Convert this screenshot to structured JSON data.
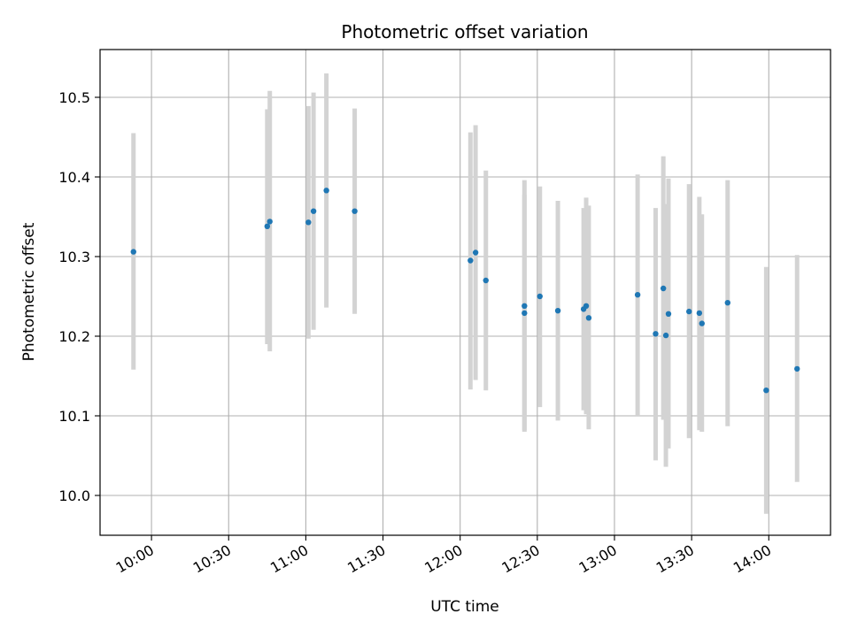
{
  "chart_data": {
    "type": "scatter",
    "title": "Photometric offset variation",
    "xlabel": "UTC time",
    "ylabel": "Photometric offset",
    "x_ticks": [
      "10:00",
      "10:30",
      "11:00",
      "11:30",
      "12:00",
      "12:30",
      "13:00",
      "13:30",
      "14:00"
    ],
    "y_ticks": [
      10.0,
      10.1,
      10.2,
      10.3,
      10.4,
      10.5
    ],
    "xlim": [
      "09:40",
      "14:24"
    ],
    "ylim": [
      9.95,
      10.56
    ],
    "grid": true,
    "colors": {
      "point": "#1f77b4",
      "errorbar": "#d3d3d3",
      "grid": "#b0b0b0"
    },
    "points": [
      {
        "x": "09:53",
        "y": 10.306,
        "err_low": 10.158,
        "err_high": 10.455
      },
      {
        "x": "10:45",
        "y": 10.338,
        "err_low": 10.19,
        "err_high": 10.485
      },
      {
        "x": "10:46",
        "y": 10.344,
        "err_low": 10.181,
        "err_high": 10.508
      },
      {
        "x": "11:01",
        "y": 10.343,
        "err_low": 10.197,
        "err_high": 10.489
      },
      {
        "x": "11:03",
        "y": 10.357,
        "err_low": 10.208,
        "err_high": 10.506
      },
      {
        "x": "11:08",
        "y": 10.383,
        "err_low": 10.236,
        "err_high": 10.53
      },
      {
        "x": "11:19",
        "y": 10.357,
        "err_low": 10.228,
        "err_high": 10.486
      },
      {
        "x": "12:04",
        "y": 10.295,
        "err_low": 10.133,
        "err_high": 10.456
      },
      {
        "x": "12:06",
        "y": 10.305,
        "err_low": 10.145,
        "err_high": 10.465
      },
      {
        "x": "12:10",
        "y": 10.27,
        "err_low": 10.132,
        "err_high": 10.408
      },
      {
        "x": "12:25",
        "y": 10.229,
        "err_low": 10.08,
        "err_high": 10.378
      },
      {
        "x": "12:25",
        "y": 10.238,
        "err_low": 10.082,
        "err_high": 10.396
      },
      {
        "x": "12:31",
        "y": 10.25,
        "err_low": 10.111,
        "err_high": 10.388
      },
      {
        "x": "12:38",
        "y": 10.232,
        "err_low": 10.094,
        "err_high": 10.37
      },
      {
        "x": "12:48",
        "y": 10.234,
        "err_low": 10.107,
        "err_high": 10.361
      },
      {
        "x": "12:49",
        "y": 10.238,
        "err_low": 10.102,
        "err_high": 10.374
      },
      {
        "x": "12:50",
        "y": 10.223,
        "err_low": 10.083,
        "err_high": 10.364
      },
      {
        "x": "13:09",
        "y": 10.252,
        "err_low": 10.101,
        "err_high": 10.403
      },
      {
        "x": "13:16",
        "y": 10.203,
        "err_low": 10.044,
        "err_high": 10.361
      },
      {
        "x": "13:19",
        "y": 10.26,
        "err_low": 10.095,
        "err_high": 10.426
      },
      {
        "x": "13:20",
        "y": 10.201,
        "err_low": 10.036,
        "err_high": 10.366
      },
      {
        "x": "13:21",
        "y": 10.228,
        "err_low": 10.059,
        "err_high": 10.398
      },
      {
        "x": "13:29",
        "y": 10.231,
        "err_low": 10.072,
        "err_high": 10.391
      },
      {
        "x": "13:33",
        "y": 10.229,
        "err_low": 10.082,
        "err_high": 10.375
      },
      {
        "x": "13:34",
        "y": 10.216,
        "err_low": 10.08,
        "err_high": 10.353
      },
      {
        "x": "13:44",
        "y": 10.242,
        "err_low": 10.087,
        "err_high": 10.396
      },
      {
        "x": "13:59",
        "y": 10.132,
        "err_low": 9.977,
        "err_high": 10.287
      },
      {
        "x": "14:11",
        "y": 10.159,
        "err_low": 10.017,
        "err_high": 10.302
      }
    ]
  }
}
